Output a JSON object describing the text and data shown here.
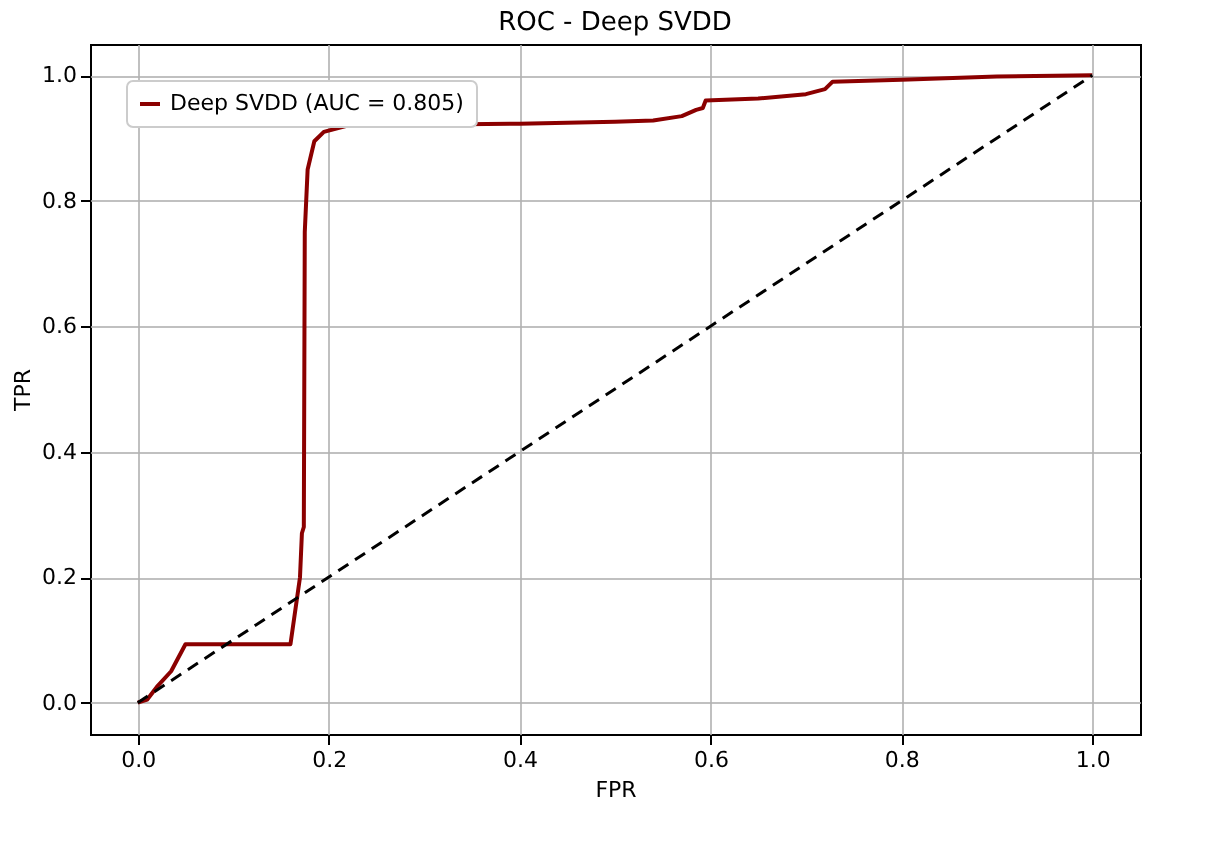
{
  "chart_data": {
    "type": "line",
    "title": "ROC - Deep SVDD",
    "xlabel": "FPR",
    "ylabel": "TPR",
    "xlim": [
      -0.05,
      1.05
    ],
    "ylim": [
      -0.05,
      1.05
    ],
    "xticks": [
      {
        "value": 0,
        "label": "0.0"
      },
      0.2,
      0.4,
      0.6,
      0.8,
      {
        "value": 1,
        "label": "1.0"
      }
    ],
    "yticks": [
      {
        "value": 0,
        "label": "0.0"
      },
      0.2,
      0.4,
      0.6,
      0.8,
      {
        "value": 1,
        "label": "1.0"
      }
    ],
    "grid": true,
    "legend": "top left",
    "marker": "none",
    "series": [
      {
        "name": "Deep SVDD (AUC = 0.805)",
        "color": "#8b0000",
        "line_style": "solid",
        "x": [
          0,
          0.01,
          0.02,
          0.035,
          0.05,
          0.16,
          0.17,
          0.172,
          0.174,
          0.175,
          0.178,
          0.185,
          0.195,
          0.22,
          0.4,
          0.5,
          0.54,
          0.57,
          0.585,
          0.592,
          0.595,
          0.65,
          0.7,
          0.72,
          0.728,
          0.8,
          0.9,
          1
        ],
        "values": [
          0,
          0.005,
          0.025,
          0.05,
          0.093,
          0.093,
          0.2,
          0.27,
          0.28,
          0.75,
          0.85,
          0.895,
          0.91,
          0.92,
          0.923,
          0.926,
          0.928,
          0.935,
          0.945,
          0.948,
          0.96,
          0.963,
          0.97,
          0.978,
          0.99,
          0.993,
          0.998,
          1
        ]
      },
      {
        "color": "#000000",
        "line_style": "dashed",
        "x": [
          0,
          1
        ],
        "values": [
          0,
          1
        ]
      }
    ]
  }
}
